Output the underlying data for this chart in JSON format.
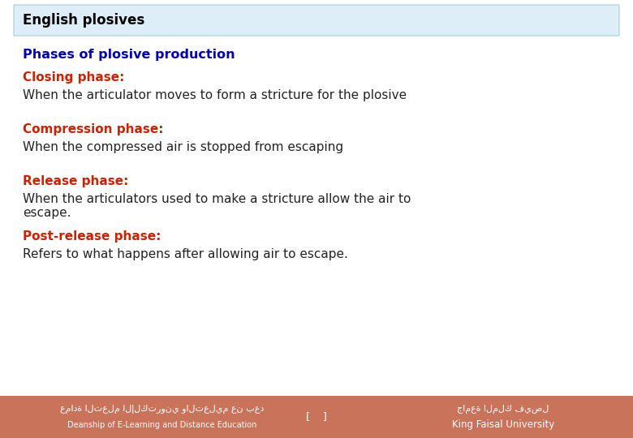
{
  "title_box_text": "English plosives",
  "title_box_bg": "#ddeef8",
  "title_box_border": "#aaccdd",
  "title_text_color": "#000000",
  "heading_color": "#0000bb",
  "phase_color": "#cc2200",
  "body_color": "#222222",
  "footer_bg": "#c8735a",
  "footer_text_color": "#ffffff",
  "bg_color": "#ffffff",
  "heading": "Phases of plosive production",
  "phases": [
    {
      "label": "Closing phase:",
      "body": "When the articulator moves to form a stricture for the plosive"
    },
    {
      "label": "Compression phase:",
      "body": "When the compressed air is stopped from escaping"
    },
    {
      "label": "Release phase:",
      "body": "When the articulators used to make a stricture allow the air to\nescape."
    },
    {
      "label": "Post-release phase:",
      "body": "Refers to what happens after allowing air to escape."
    }
  ],
  "footer_left_arabic": "عمادة التعلم الإلكتروني والتعليم عن بعد",
  "footer_left_english": "Deanship of E-Learning and Distance Education",
  "footer_right_arabic": "جامعة الملك فيصل",
  "footer_right_english": "King Faisal University",
  "footer_bracket": "[    ]"
}
